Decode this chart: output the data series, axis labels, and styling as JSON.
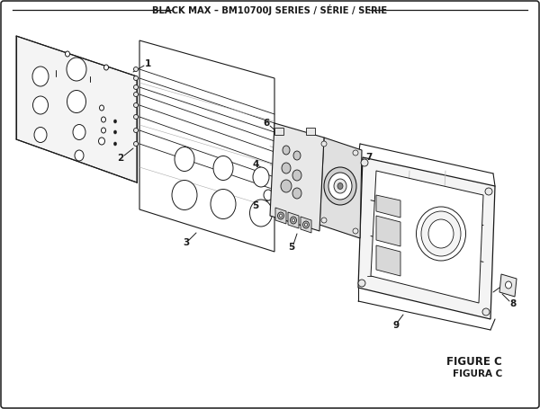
{
  "title": "BLACK MAX – BM10700J SERIES / SÉRIE / SERIE",
  "figure_label": "FIGURE C",
  "figura_label": "FIGURA C",
  "bg_color": "#ffffff",
  "line_color": "#1a1a1a",
  "text_color": "#1a1a1a",
  "gray_fill": "#e8e8e8",
  "light_fill": "#f4f4f4"
}
